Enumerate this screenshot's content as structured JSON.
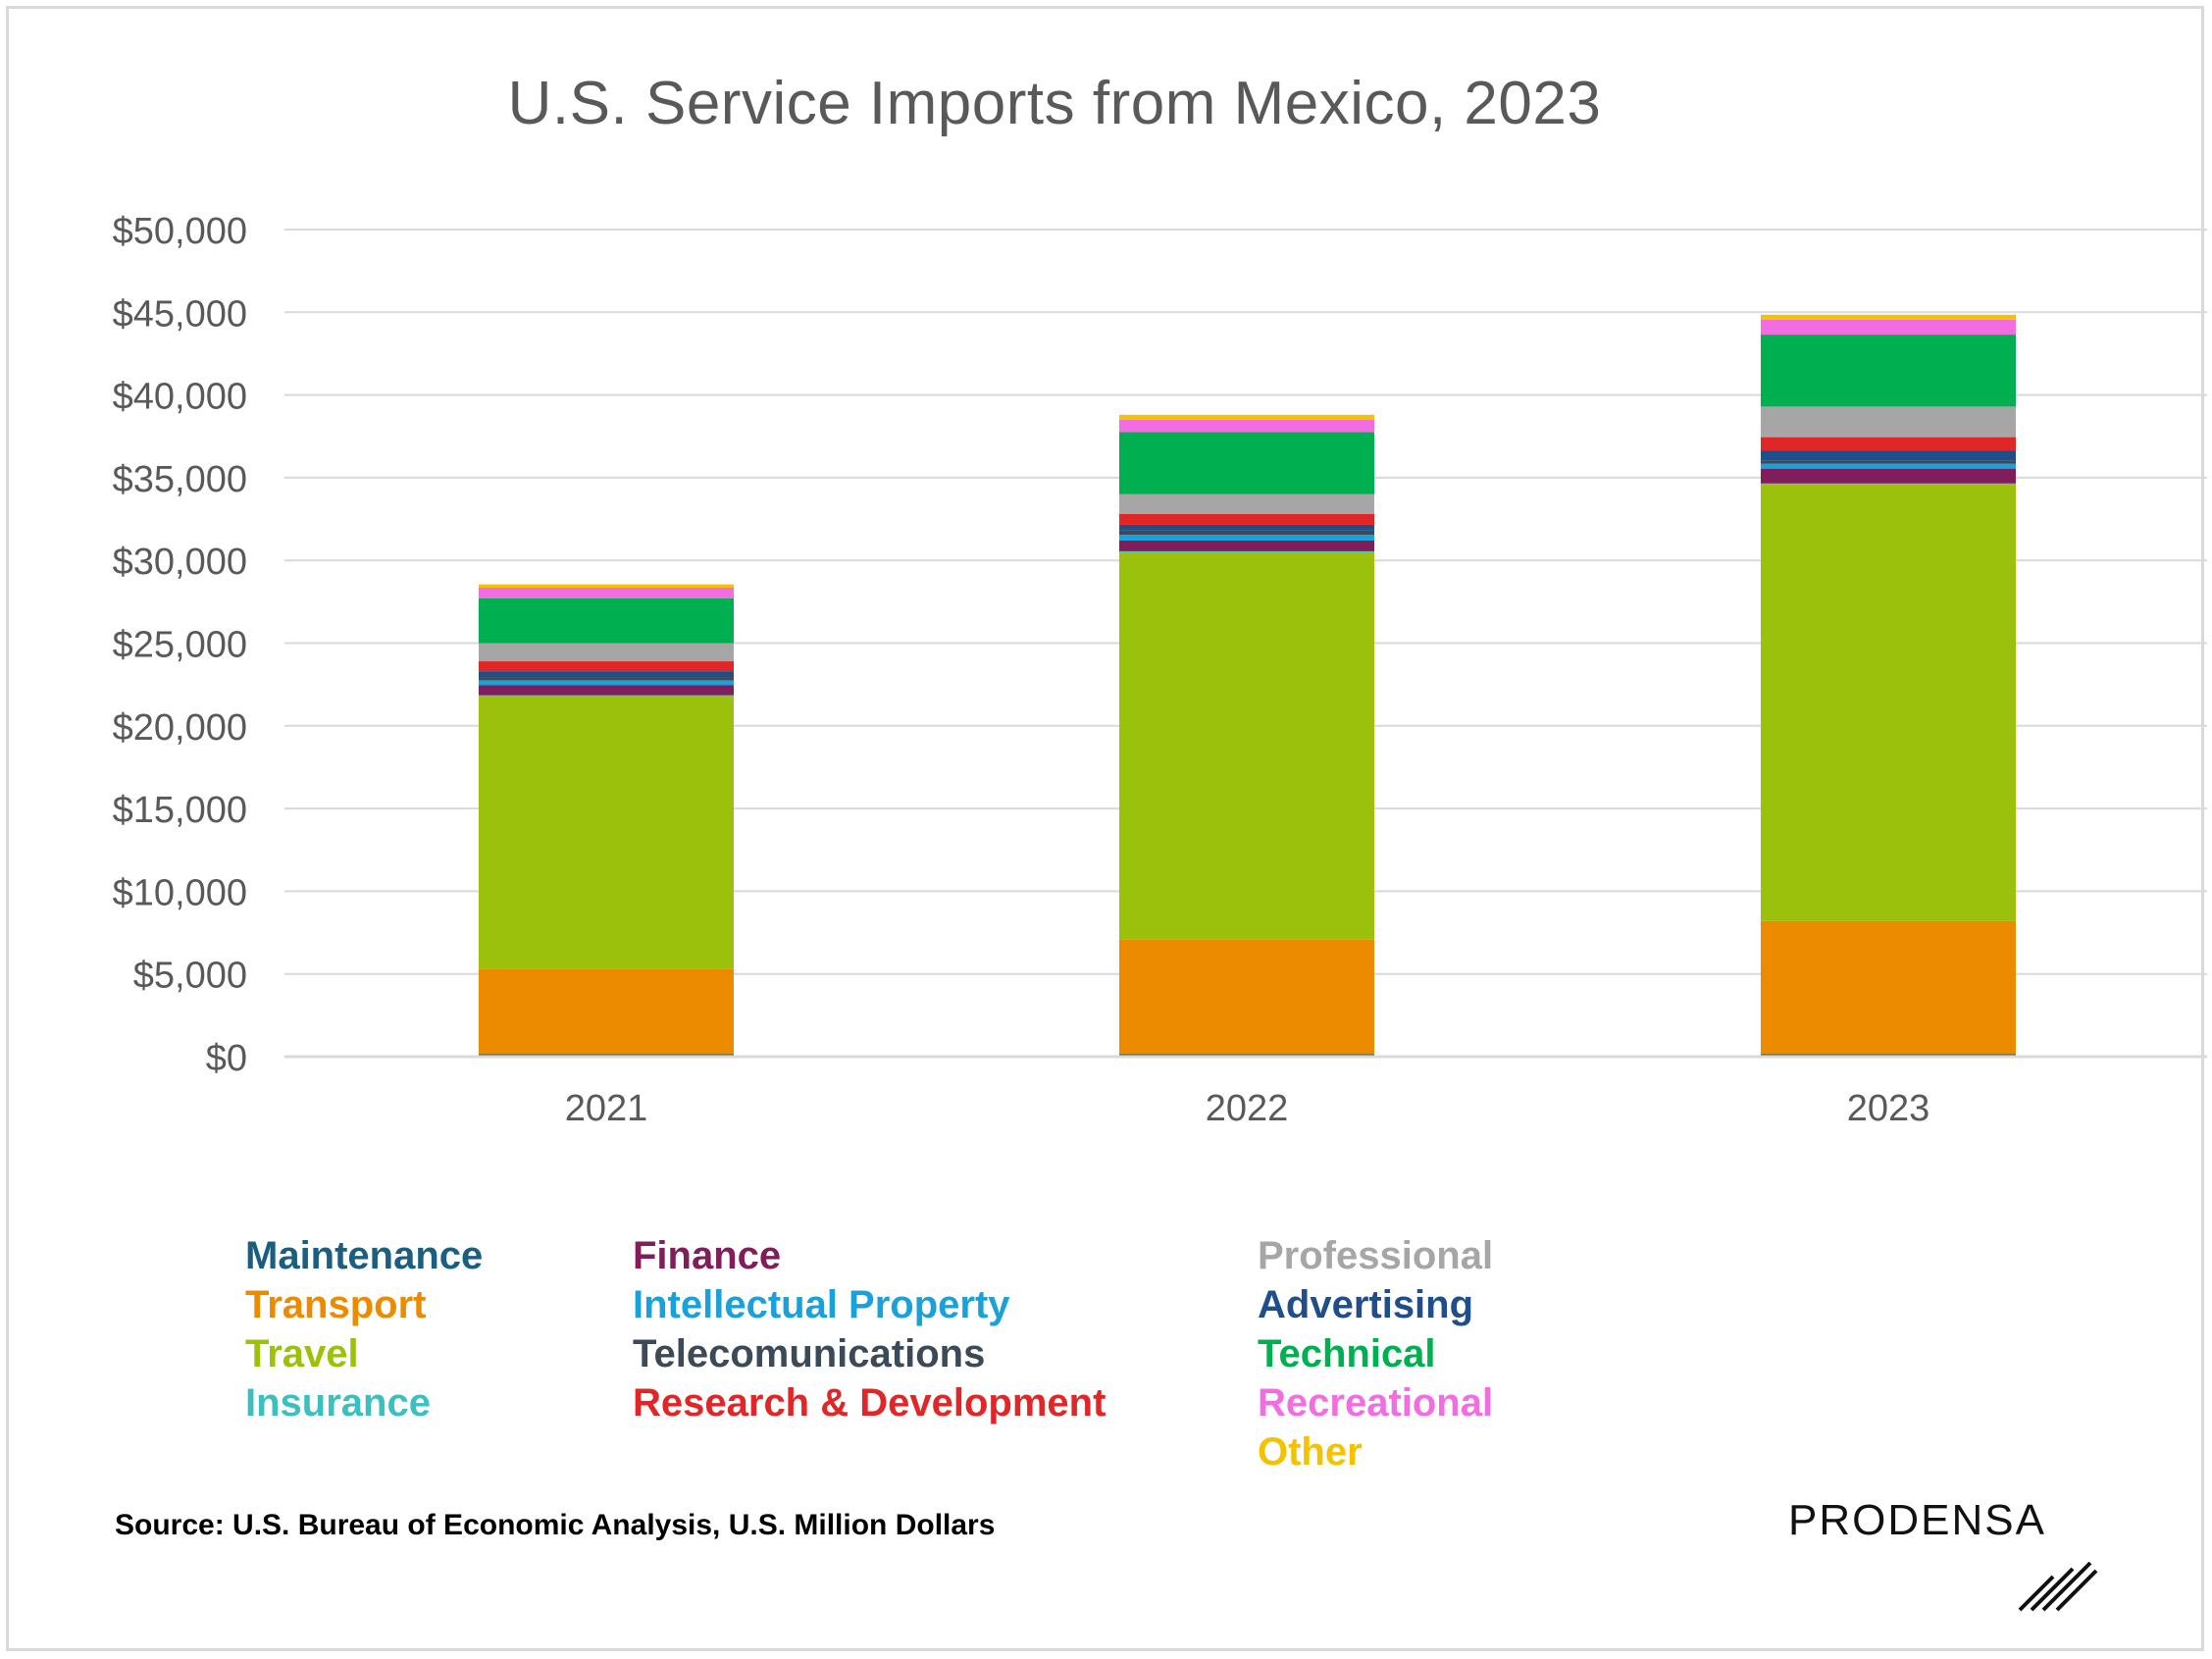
{
  "chart_data": {
    "type": "bar",
    "stacked": true,
    "title": "U.S. Service Imports from Mexico, 2023",
    "categories": [
      "2021",
      "2022",
      "2023"
    ],
    "ylim": [
      0,
      50000
    ],
    "yticks": [
      0,
      5000,
      10000,
      15000,
      20000,
      25000,
      30000,
      35000,
      40000,
      45000,
      50000
    ],
    "ytick_labels": [
      "$0",
      "$5,000",
      "$10,000",
      "$15,000",
      "$20,000",
      "$25,000",
      "$30,000",
      "$35,000",
      "$40,000",
      "$45,000",
      "$50,000"
    ],
    "grid": true,
    "legend_position": "bottom",
    "series": [
      {
        "name": "Maintenance",
        "color": "#1a5e80",
        "values": [
          150,
          150,
          150
        ]
      },
      {
        "name": "Transport",
        "color": "#ed8b00",
        "values": [
          5150,
          6950,
          8050
        ]
      },
      {
        "name": "Travel",
        "color": "#9bc10d",
        "values": [
          16500,
          23400,
          26400
        ]
      },
      {
        "name": "Insurance",
        "color": "#3bbfbf",
        "values": [
          50,
          50,
          50
        ]
      },
      {
        "name": "Finance",
        "color": "#7f1e5a",
        "values": [
          600,
          650,
          900
        ]
      },
      {
        "name": "Intellectual Property",
        "color": "#1ba1d9",
        "values": [
          300,
          350,
          300
        ]
      },
      {
        "name": "Telecomunications",
        "color": "#3c4a57",
        "values": [
          200,
          250,
          200
        ]
      },
      {
        "name": "Advertising",
        "color": "#1f4e8a",
        "values": [
          350,
          350,
          600
        ]
      },
      {
        "name": "Research & Development",
        "color": "#e02626",
        "values": [
          600,
          650,
          800
        ]
      },
      {
        "name": "Professional",
        "color": "#a6a6a6",
        "values": [
          1100,
          1200,
          1850
        ]
      },
      {
        "name": "Technical",
        "color": "#00b050",
        "values": [
          2700,
          3750,
          4350
        ]
      },
      {
        "name": "Recreational",
        "color": "#f26ce2",
        "values": [
          650,
          750,
          900
        ]
      },
      {
        "name": "Other",
        "color": "#f5c200",
        "values": [
          200,
          300,
          300
        ]
      }
    ]
  },
  "legend_colors": {
    "Maintenance": "#1a5e80",
    "Transport": "#ed8b00",
    "Travel": "#9bc10d",
    "Insurance": "#3bbfbf",
    "Finance": "#7f1e5a",
    "Intellectual Property": "#1ba1d9",
    "Telecomunications": "#3c4a57",
    "Research & Development": "#e02626",
    "Professional": "#a6a6a6",
    "Advertising": "#1f4e8a",
    "Technical": "#00b050",
    "Recreational": "#f26ce2",
    "Other": "#f5c200"
  },
  "source": "Source: U.S. Bureau of Economic Analysis, U.S. Million Dollars",
  "logo": {
    "text": "PRODENSA",
    "icon": "diagonal-lines-icon"
  }
}
